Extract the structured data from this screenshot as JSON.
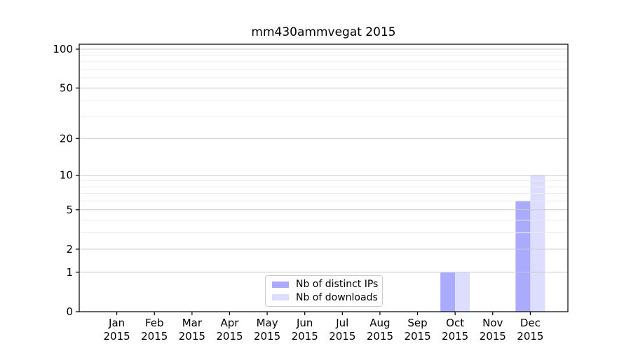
{
  "chart_data": {
    "type": "bar",
    "title": "mm430ammvegat 2015",
    "xlabel": "",
    "ylabel": "",
    "year": "2015",
    "categories": [
      "Jan",
      "Feb",
      "Mar",
      "Apr",
      "May",
      "Jun",
      "Jul",
      "Aug",
      "Sep",
      "Oct",
      "Nov",
      "Dec"
    ],
    "series": [
      {
        "name": "Nb of distinct IPs",
        "color": "#aaaaff",
        "values": [
          0,
          0,
          0,
          0,
          0,
          0,
          0,
          0,
          0,
          1,
          0,
          6
        ]
      },
      {
        "name": "Nb of downloads",
        "color": "#ddddff",
        "values": [
          0,
          0,
          0,
          0,
          0,
          0,
          0,
          0,
          0,
          1,
          0,
          10
        ]
      }
    ],
    "yscale": "log1p",
    "ylim": [
      0,
      100
    ],
    "y_ticks": [
      0,
      1,
      2,
      5,
      10,
      20,
      50,
      100
    ],
    "y_minor_gridlines": [
      3,
      4,
      6,
      7,
      8,
      9,
      30,
      40,
      60,
      70,
      80,
      90
    ],
    "grid": true,
    "legend_position": "lower center",
    "colors": {
      "axis": "#000000",
      "major_grid": "#cccccc",
      "minor_grid": "#ececec",
      "background": "#ffffff"
    }
  }
}
